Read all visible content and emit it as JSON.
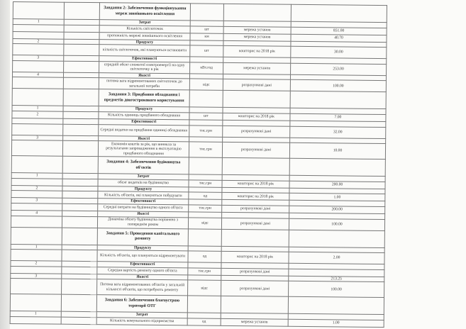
{
  "rows": [
    {
      "num": "",
      "name": "Завдання 2: Забезпечення функціонування мереж зовнішнього освітлення",
      "unit": "",
      "source": "",
      "value": "",
      "type": "title"
    },
    {
      "num": "1",
      "name": "Затрат",
      "unit": "",
      "source": "",
      "value": "",
      "type": "section"
    },
    {
      "num": "",
      "name": "Кількість світлоточок",
      "unit": "шт",
      "source": "мережа установ",
      "value": "851.00",
      "type": "item"
    },
    {
      "num": "",
      "name": "протяжність мережі зовнішнього освітлення",
      "unit": "км",
      "source": "мережа установ",
      "value": "40.70",
      "type": "item"
    },
    {
      "num": "2",
      "name": "Продукту",
      "unit": "",
      "source": "",
      "value": "",
      "type": "section"
    },
    {
      "num": "",
      "name": "кількість світлоточок, які плануються встановити",
      "unit": "шт",
      "source": "кошторис на 2018 рік",
      "value": "30.00",
      "type": "item"
    },
    {
      "num": "3",
      "name": "Ефективності",
      "unit": "",
      "source": "",
      "value": "",
      "type": "section"
    },
    {
      "num": "",
      "name": "середній обсяг спожитої електроенергії на одну світлоточку в рік",
      "unit": "кВт.год",
      "source": "мережа установ",
      "value": "253.00",
      "type": "item"
    },
    {
      "num": "4",
      "name": "Якості",
      "unit": "",
      "source": "",
      "value": "",
      "type": "section"
    },
    {
      "num": "",
      "name": "питома вага відремонтованих світлоточок до загальної потреби",
      "unit": "відс",
      "source": "розрахункові дані",
      "value": "100.00",
      "type": "item"
    },
    {
      "num": "",
      "name": "Завдання 3: Придбання обладнання і предметів довгострокового користування",
      "unit": "",
      "source": "",
      "value": "",
      "type": "title"
    },
    {
      "num": "1",
      "name": "Продукту",
      "unit": "",
      "source": "",
      "value": "",
      "type": "section"
    },
    {
      "num": "2",
      "name": "Кількість одиниць придбаного обладнання",
      "unit": "шт",
      "source": "кошторис на 2018 рік",
      "value": "7.00",
      "type": "item"
    },
    {
      "num": "",
      "name": "Ефективності",
      "unit": "",
      "source": "",
      "value": "",
      "type": "section"
    },
    {
      "num": "",
      "name": "Середні видатки на придбання одиниці обладнання",
      "unit": "тис.грн",
      "source": "розрахункові дані",
      "value": "32.00",
      "type": "item"
    },
    {
      "num": "3",
      "name": "Якості",
      "unit": "",
      "source": "",
      "value": "",
      "type": "section"
    },
    {
      "num": "",
      "name": "Економія коштів за рік, що виникла за результатами запровадження в експлуатацію придбаного обладнання",
      "unit": "тис.грн",
      "source": "розрахункові дані",
      "value": "10.00",
      "type": "item"
    },
    {
      "num": "",
      "name": "Завдання 4: Забезпечення будівництва об'єктів",
      "unit": "",
      "source": "",
      "value": "",
      "type": "title"
    },
    {
      "num": "1",
      "name": "Затрат",
      "unit": "",
      "source": "",
      "value": "",
      "type": "section"
    },
    {
      "num": "",
      "name": "обсяг видатків на будівництво",
      "unit": "тис.грн",
      "source": "кошторис на 2018 рік",
      "value": "200.00",
      "type": "item"
    },
    {
      "num": "2",
      "name": "Продукту",
      "unit": "",
      "source": "",
      "value": "",
      "type": "section"
    },
    {
      "num": "",
      "name": "Кількість об'єктів, які плануються побудувати",
      "unit": "од",
      "source": "кошторис на 2018 рік",
      "value": "1.00",
      "type": "item"
    },
    {
      "num": "3",
      "name": "Ефективності",
      "unit": "",
      "source": "",
      "value": "",
      "type": "section"
    },
    {
      "num": "",
      "name": "Середні витрати на будівництво одного об'єкта",
      "unit": "тис.грн",
      "source": "розрахункові дані",
      "value": "200.00",
      "type": "item"
    },
    {
      "num": "4",
      "name": "Якості",
      "unit": "",
      "source": "",
      "value": "",
      "type": "section"
    },
    {
      "num": "",
      "name": "Динаміка обсягу будівництва порівняно з попереднім роком",
      "unit": "відс",
      "source": "розрахункові дані",
      "value": "100.00",
      "type": "item"
    },
    {
      "num": "",
      "name": "Завдання 5: Проведення капітального ремонту",
      "unit": "",
      "source": "",
      "value": "",
      "type": "title"
    },
    {
      "num": "1",
      "name": "Продукту",
      "unit": "",
      "source": "",
      "value": "",
      "type": "section"
    },
    {
      "num": "",
      "name": "Кількість об'єктів, що плануються відремонтувати",
      "unit": "од",
      "source": "кошторис на 2018 рік",
      "value": "2.00",
      "type": "item"
    },
    {
      "num": "2",
      "name": "Ефективності",
      "unit": "",
      "source": "",
      "value": "",
      "type": "section"
    },
    {
      "num": "",
      "name": "Середня вартість ремонту одного об'єкта",
      "unit": "тис.грн",
      "source": "розрахункові дані",
      "value": "",
      "type": "item"
    },
    {
      "num": "3",
      "name": "Якості",
      "unit": "",
      "source": "",
      "value": "213.25",
      "type": "section"
    },
    {
      "num": "",
      "name": "Питома вага відремонтованих об'єктів у загальній кількості об'єктів, що потребують ремонту",
      "unit": "відс",
      "source": "розрахункові дані",
      "value": "100.00",
      "type": "item"
    },
    {
      "num": "",
      "name": "Завдання 6: Забезпечення благоустрою території ОТГ",
      "unit": "",
      "source": "",
      "value": "",
      "type": "title"
    },
    {
      "num": "1",
      "name": "Затрат",
      "unit": "",
      "source": "",
      "value": "",
      "type": "section"
    },
    {
      "num": "",
      "name": "Кількість комунального підприємства",
      "unit": "од",
      "source": "мережа установ",
      "value": "1.00",
      "type": "item"
    }
  ]
}
